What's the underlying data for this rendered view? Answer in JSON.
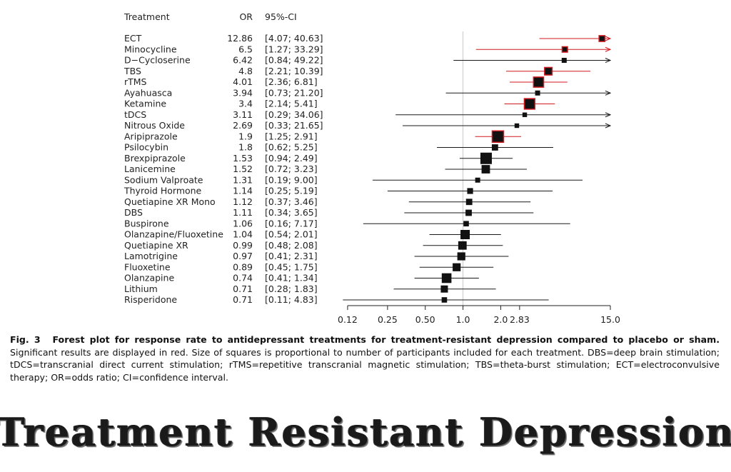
{
  "table_headers": {
    "treatment": "Treatment",
    "or": "OR",
    "ci": "95%-CI"
  },
  "colors": {
    "significant": "#d0191f",
    "nonsignificant": "#1a1a1a",
    "reference_line": "#c8c8c8"
  },
  "chart_data": {
    "type": "forest",
    "x_scale": "log",
    "xlim": [
      0.09,
      15.0
    ],
    "x_ticks": [
      0.12,
      0.25,
      0.5,
      1.0,
      2.0,
      2.83,
      15.0
    ],
    "x_tick_labels": [
      "0.12",
      "0.25",
      "0.50",
      "1.0",
      "2.0",
      "2.83",
      "15.0"
    ],
    "reference_value": 1.0,
    "rows": [
      {
        "treatment": "ECT",
        "or": 12.86,
        "or_label": "12.86",
        "ci_label": "[4.07; 40.63]",
        "lo": 4.07,
        "hi": 40.63,
        "significant": true,
        "weight": 0.35
      },
      {
        "treatment": "Minocycline",
        "or": 6.5,
        "or_label": "6.5",
        "ci_label": "[1.27; 33.29]",
        "lo": 1.27,
        "hi": 33.29,
        "significant": true,
        "weight": 0.3
      },
      {
        "treatment": "D−Cycloserine",
        "or": 6.42,
        "or_label": "6.42",
        "ci_label": "[0.84; 49.22]",
        "lo": 0.84,
        "hi": 49.22,
        "significant": false,
        "weight": 0.25
      },
      {
        "treatment": "TBS",
        "or": 4.8,
        "or_label": "4.8",
        "ci_label": "[2.21; 10.39]",
        "lo": 2.21,
        "hi": 10.39,
        "significant": true,
        "weight": 0.55
      },
      {
        "treatment": "rTMS",
        "or": 4.01,
        "or_label": "4.01",
        "ci_label": "[2.36; 6.81]",
        "lo": 2.36,
        "hi": 6.81,
        "significant": true,
        "weight": 0.85
      },
      {
        "treatment": "Ayahuasca",
        "or": 3.94,
        "or_label": "3.94",
        "ci_label": "[0.73; 21.20]",
        "lo": 0.73,
        "hi": 21.2,
        "significant": false,
        "weight": 0.25
      },
      {
        "treatment": "Ketamine",
        "or": 3.4,
        "or_label": "3.4",
        "ci_label": "[2.14; 5.41]",
        "lo": 2.14,
        "hi": 5.41,
        "significant": true,
        "weight": 0.9
      },
      {
        "treatment": "tDCS",
        "or": 3.11,
        "or_label": "3.11",
        "ci_label": "[0.29; 34.06]",
        "lo": 0.29,
        "hi": 34.06,
        "significant": false,
        "weight": 0.2
      },
      {
        "treatment": "Nitrous Oxide",
        "or": 2.69,
        "or_label": "2.69",
        "ci_label": "[0.33; 21.65]",
        "lo": 0.33,
        "hi": 21.65,
        "significant": false,
        "weight": 0.2
      },
      {
        "treatment": "Aripiprazole",
        "or": 1.9,
        "or_label": "1.9",
        "ci_label": "[1.25; 2.91]",
        "lo": 1.25,
        "hi": 2.91,
        "significant": true,
        "weight": 1.0
      },
      {
        "treatment": "Psilocybin",
        "or": 1.8,
        "or_label": "1.8",
        "ci_label": "[0.62; 5.25]",
        "lo": 0.62,
        "hi": 5.25,
        "significant": false,
        "weight": 0.4
      },
      {
        "treatment": "Brexpiprazole",
        "or": 1.53,
        "or_label": "1.53",
        "ci_label": "[0.94; 2.49]",
        "lo": 0.94,
        "hi": 2.49,
        "significant": false,
        "weight": 1.0
      },
      {
        "treatment": "Lanicemine",
        "or": 1.52,
        "or_label": "1.52",
        "ci_label": "[0.72; 3.23]",
        "lo": 0.72,
        "hi": 3.23,
        "significant": false,
        "weight": 0.65
      },
      {
        "treatment": "Sodium Valproate",
        "or": 1.31,
        "or_label": "1.31",
        "ci_label": "[0.19; 9.00]",
        "lo": 0.19,
        "hi": 9.0,
        "significant": false,
        "weight": 0.25
      },
      {
        "treatment": "Thyroid Hormone",
        "or": 1.14,
        "or_label": "1.14",
        "ci_label": "[0.25; 5.19]",
        "lo": 0.25,
        "hi": 5.19,
        "significant": false,
        "weight": 0.35
      },
      {
        "treatment": "Quetiapine XR Mono",
        "or": 1.12,
        "or_label": "1.12",
        "ci_label": "[0.37; 3.46]",
        "lo": 0.37,
        "hi": 3.46,
        "significant": false,
        "weight": 0.4
      },
      {
        "treatment": "DBS",
        "or": 1.11,
        "or_label": "1.11",
        "ci_label": "[0.34; 3.65]",
        "lo": 0.34,
        "hi": 3.65,
        "significant": false,
        "weight": 0.4
      },
      {
        "treatment": "Buspirone",
        "or": 1.06,
        "or_label": "1.06",
        "ci_label": "[0.16; 7.17]",
        "lo": 0.16,
        "hi": 7.17,
        "significant": false,
        "weight": 0.3
      },
      {
        "treatment": "Olanzapine/Fluoxetine",
        "or": 1.04,
        "or_label": "1.04",
        "ci_label": "[0.54; 2.01]",
        "lo": 0.54,
        "hi": 2.01,
        "significant": false,
        "weight": 0.75
      },
      {
        "treatment": "Quetiapine XR",
        "or": 0.99,
        "or_label": "0.99",
        "ci_label": "[0.48; 2.08]",
        "lo": 0.48,
        "hi": 2.08,
        "significant": false,
        "weight": 0.65
      },
      {
        "treatment": "Lamotrigine",
        "or": 0.97,
        "or_label": "0.97",
        "ci_label": "[0.41; 2.31]",
        "lo": 0.41,
        "hi": 2.31,
        "significant": false,
        "weight": 0.6
      },
      {
        "treatment": "Fluoxetine",
        "or": 0.89,
        "or_label": "0.89",
        "ci_label": "[0.45; 1.75]",
        "lo": 0.45,
        "hi": 1.75,
        "significant": false,
        "weight": 0.6
      },
      {
        "treatment": "Olanzapine",
        "or": 0.74,
        "or_label": "0.74",
        "ci_label": "[0.41; 1.34]",
        "lo": 0.41,
        "hi": 1.34,
        "significant": false,
        "weight": 0.8
      },
      {
        "treatment": "Lithium",
        "or": 0.71,
        "or_label": "0.71",
        "ci_label": "[0.28; 1.83]",
        "lo": 0.28,
        "hi": 1.83,
        "significant": false,
        "weight": 0.5
      },
      {
        "treatment": "Risperidone",
        "or": 0.71,
        "or_label": "0.71",
        "ci_label": "[0.11; 4.83]",
        "lo": 0.11,
        "hi": 4.83,
        "significant": false,
        "weight": 0.3
      }
    ]
  },
  "caption": {
    "fig_label": "Fig. 3",
    "title": "Forest plot for response rate to antidepressant treatments for treatment-resistant depression compared to placebo or sham.",
    "body": "Significant results are displayed in red. Size of squares is proportional to number of participants included for each treatment. DBS=deep brain stimulation; tDCS=transcranial direct current stimulation; rTMS=repetitive transcranial magnetic stimulation; TBS=theta-burst stimulation; ECT=electroconvulsive therapy; OR=odds ratio; CI=confidence interval."
  },
  "banner": {
    "text": "Treatment Resistant Depression"
  }
}
